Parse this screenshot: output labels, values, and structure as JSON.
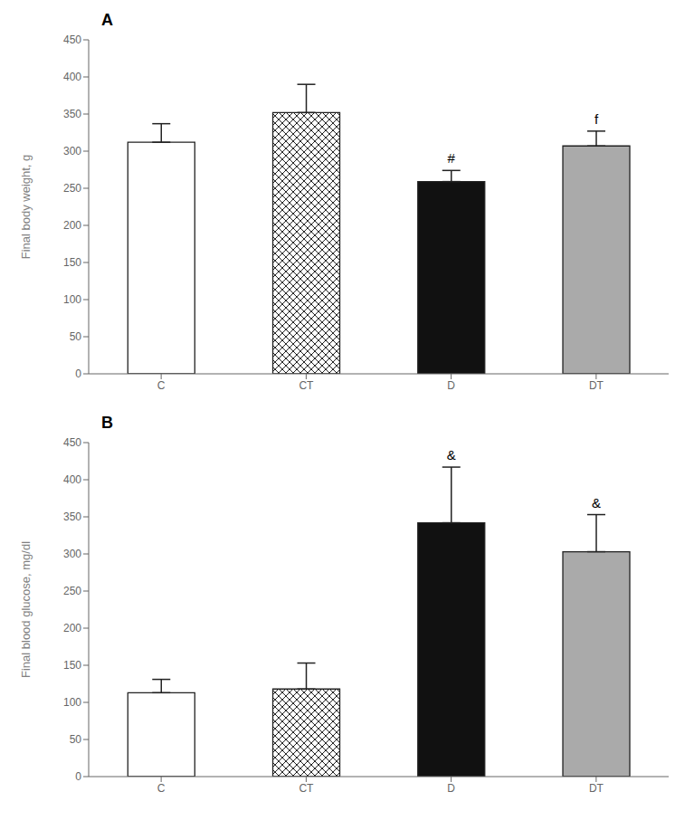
{
  "chart_data": [
    {
      "type": "bar",
      "title": "A",
      "categories": [
        "C",
        "CT",
        "D",
        "DT"
      ],
      "values": [
        312,
        352,
        259,
        307
      ],
      "errors": [
        25,
        38,
        15,
        20
      ],
      "ylabel": "Final body weight, g",
      "ylim": [
        0,
        450
      ],
      "yticks": [
        0,
        50,
        100,
        150,
        200,
        250,
        300,
        350,
        400,
        450
      ],
      "colors": [
        "#ffffff",
        "#ffffff",
        "#111111",
        "#aaaaaa"
      ],
      "annotations": [
        null,
        null,
        "#",
        "f"
      ],
      "grid": false
    },
    {
      "type": "bar",
      "title": "B",
      "categories": [
        "C",
        "CT",
        "D",
        "DT"
      ],
      "values": [
        113,
        118,
        342,
        303
      ],
      "errors": [
        18,
        35,
        75,
        50
      ],
      "ylabel": "Final blood glucose, mg/dl",
      "ylim": [
        0,
        450
      ],
      "yticks": [
        0,
        50,
        100,
        150,
        200,
        250,
        300,
        350,
        400,
        450
      ],
      "colors": [
        "#ffffff",
        "#ffffff",
        "#111111",
        "#aaaaaa"
      ],
      "annotations": [
        null,
        null,
        "&",
        "&"
      ],
      "grid": false
    }
  ]
}
